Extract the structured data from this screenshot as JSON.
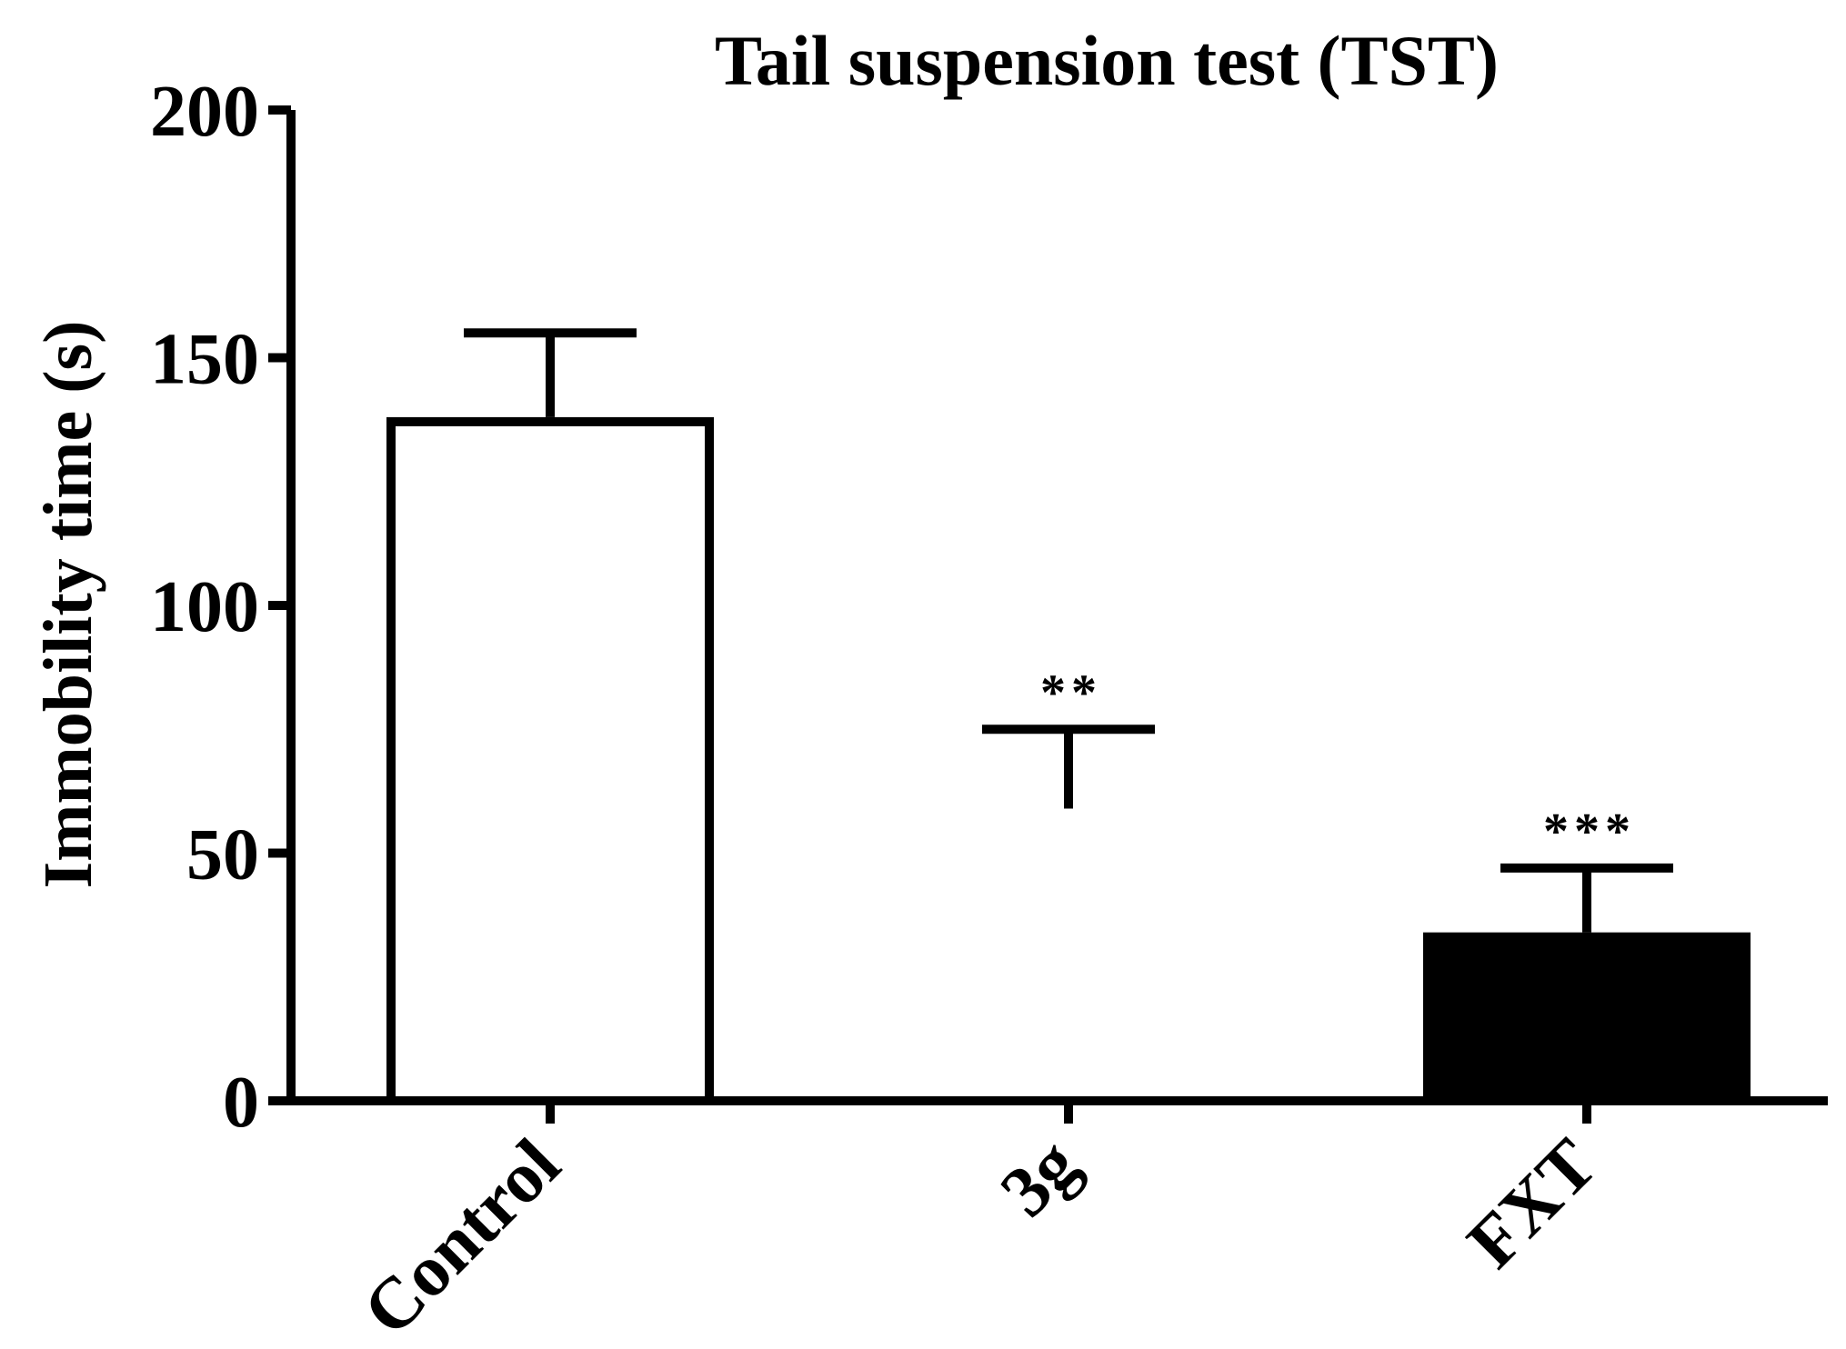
{
  "chart_data": {
    "type": "bar",
    "title": "Tail suspension test (TST)",
    "xlabel": "",
    "ylabel": "Immobility time (s)",
    "ylim": [
      0,
      200
    ],
    "yticks": [
      "0",
      "50",
      "100",
      "150",
      "200"
    ],
    "categories": [
      "Control",
      "3g",
      "FXT"
    ],
    "values": [
      138,
      0,
      34
    ],
    "error_upper": [
      155,
      75,
      47
    ],
    "bar_fills": [
      "#ffffff",
      "#ffffff",
      "#000000"
    ],
    "significance": [
      "",
      "**",
      "***"
    ],
    "grid": false,
    "legend": "none"
  }
}
